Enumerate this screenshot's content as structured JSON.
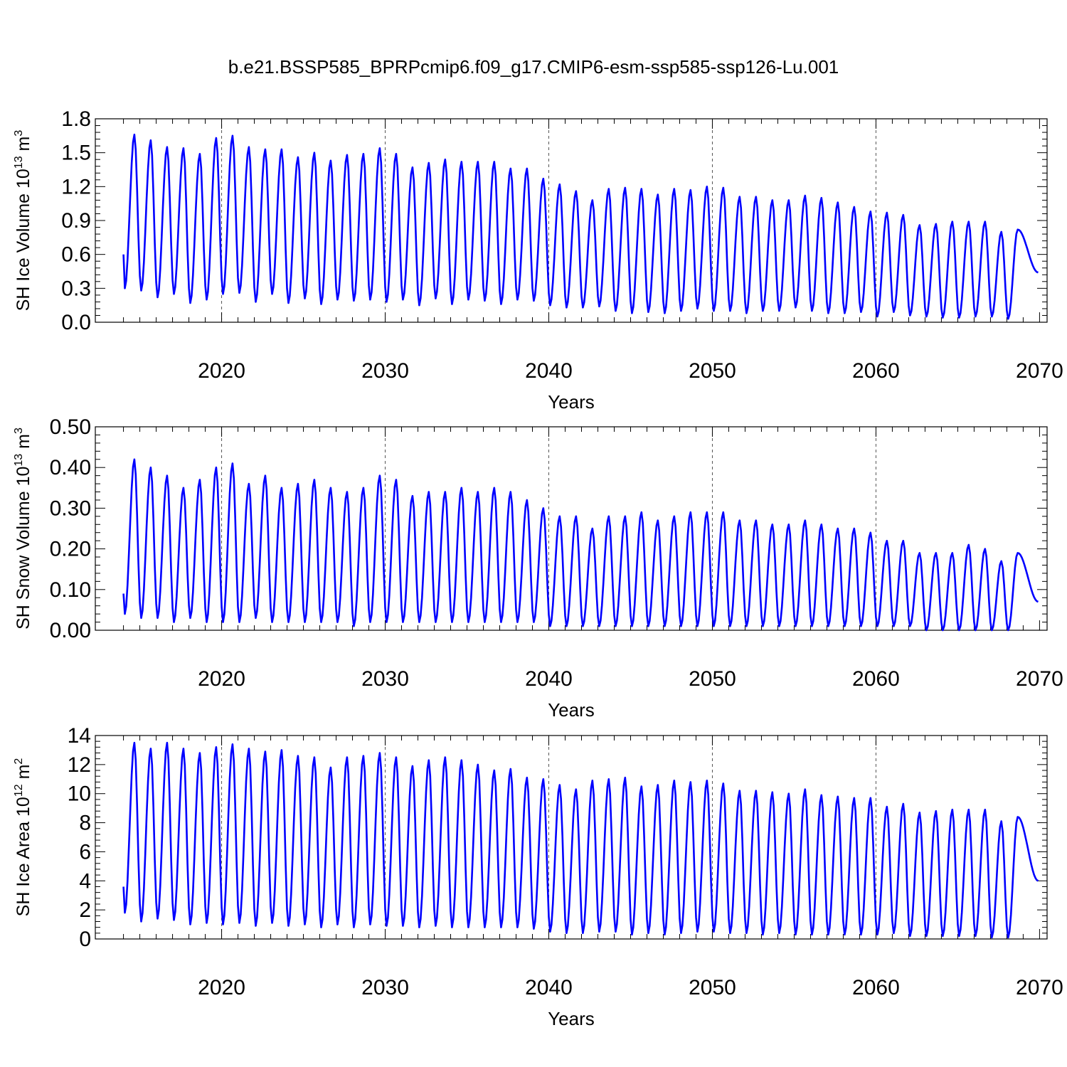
{
  "figure_title": "b.e21.BSSP585_BPRPcmip6.f09_g17.CMIP6-esm-ssp585-ssp126-Lu.001",
  "line_color": "#0000ff",
  "chart_data": [
    {
      "type": "line",
      "ylabel": {
        "base": "SH Ice Volume 10",
        "exp": "13",
        "unit": " m",
        "unit_exp": "3"
      },
      "xlabel": "Years",
      "xlim": [
        2014,
        2070
      ],
      "ylim": [
        0,
        1.8
      ],
      "xticks": [
        2020,
        2030,
        2040,
        2050,
        2060,
        2070
      ],
      "yticks": [
        "0.0",
        "0.3",
        "0.6",
        "0.9",
        "1.2",
        "1.5",
        "1.8"
      ],
      "ytick_values": [
        0,
        0.3,
        0.6,
        0.9,
        1.2,
        1.5,
        1.8
      ],
      "grid": "dashed vertical at decades",
      "series": [
        {
          "name": "SH Ice Volume",
          "peak_month": 9,
          "trough_month": 2,
          "annual_max": [
            1.66,
            1.61,
            1.55,
            1.54,
            1.49,
            1.63,
            1.65,
            1.55,
            1.53,
            1.53,
            1.46,
            1.5,
            1.43,
            1.48,
            1.49,
            1.54,
            1.49,
            1.37,
            1.41,
            1.44,
            1.42,
            1.42,
            1.42,
            1.36,
            1.36,
            1.27,
            1.22,
            1.16,
            1.08,
            1.18,
            1.19,
            1.18,
            1.13,
            1.18,
            1.17,
            1.2,
            1.19,
            1.11,
            1.11,
            1.08,
            1.08,
            1.12,
            1.1,
            1.06,
            1.02,
            0.98,
            0.97,
            0.95,
            0.86,
            0.87,
            0.89,
            0.89,
            0.89,
            0.8,
            0.82
          ],
          "annual_min": [
            0.3,
            0.28,
            0.22,
            0.25,
            0.17,
            0.2,
            0.25,
            0.26,
            0.18,
            0.25,
            0.17,
            0.21,
            0.16,
            0.2,
            0.19,
            0.2,
            0.18,
            0.2,
            0.15,
            0.21,
            0.16,
            0.2,
            0.19,
            0.16,
            0.2,
            0.19,
            0.15,
            0.13,
            0.13,
            0.14,
            0.1,
            0.08,
            0.09,
            0.08,
            0.1,
            0.12,
            0.1,
            0.1,
            0.08,
            0.1,
            0.1,
            0.13,
            0.1,
            0.08,
            0.08,
            0.09,
            0.05,
            0.09,
            0.06,
            0.05,
            0.04,
            0.04,
            0.05,
            0.05,
            0.03
          ],
          "start_value": 0.6,
          "end_value": 0.44
        }
      ]
    },
    {
      "type": "line",
      "ylabel": {
        "base": "SH Snow Volume 10",
        "exp": "13",
        "unit": " m",
        "unit_exp": "3"
      },
      "xlabel": "Years",
      "xlim": [
        2014,
        2070
      ],
      "ylim": [
        0,
        0.5
      ],
      "xticks": [
        2020,
        2030,
        2040,
        2050,
        2060,
        2070
      ],
      "yticks": [
        "0.00",
        "0.10",
        "0.20",
        "0.30",
        "0.40",
        "0.50"
      ],
      "ytick_values": [
        0,
        0.1,
        0.2,
        0.3,
        0.4,
        0.5
      ],
      "grid": "dashed vertical at decades",
      "series": [
        {
          "name": "SH Snow Volume",
          "peak_month": 9,
          "trough_month": 2,
          "annual_max": [
            0.42,
            0.4,
            0.38,
            0.35,
            0.37,
            0.4,
            0.41,
            0.36,
            0.38,
            0.35,
            0.36,
            0.37,
            0.35,
            0.34,
            0.35,
            0.38,
            0.37,
            0.33,
            0.34,
            0.34,
            0.35,
            0.34,
            0.35,
            0.34,
            0.32,
            0.3,
            0.28,
            0.28,
            0.25,
            0.28,
            0.28,
            0.29,
            0.27,
            0.28,
            0.29,
            0.29,
            0.29,
            0.27,
            0.27,
            0.26,
            0.26,
            0.27,
            0.26,
            0.25,
            0.25,
            0.24,
            0.22,
            0.22,
            0.19,
            0.19,
            0.19,
            0.21,
            0.2,
            0.17,
            0.19
          ],
          "annual_min": [
            0.04,
            0.03,
            0.03,
            0.02,
            0.03,
            0.02,
            0.02,
            0.02,
            0.03,
            0.02,
            0.02,
            0.02,
            0.02,
            0.02,
            0.01,
            0.02,
            0.02,
            0.02,
            0.02,
            0.02,
            0.02,
            0.02,
            0.02,
            0.02,
            0.02,
            0.02,
            0.01,
            0.01,
            0.01,
            0.01,
            0.01,
            0.01,
            0.01,
            0.01,
            0.01,
            0.01,
            0.01,
            0.01,
            0.01,
            0.01,
            0.01,
            0.01,
            0.01,
            0.01,
            0.01,
            0.01,
            0.01,
            0.01,
            0.01,
            0.0,
            0.0,
            0.0,
            0.0,
            0.0,
            0.0
          ],
          "start_value": 0.09,
          "end_value": 0.07
        }
      ]
    },
    {
      "type": "line",
      "ylabel": {
        "base": "SH Ice Area 10",
        "exp": "12",
        "unit": " m",
        "unit_exp": "2"
      },
      "xlabel": "Years",
      "xlim": [
        2014,
        2070
      ],
      "ylim": [
        0,
        14
      ],
      "xticks": [
        2020,
        2030,
        2040,
        2050,
        2060,
        2070
      ],
      "yticks": [
        "0",
        "2",
        "4",
        "6",
        "8",
        "10",
        "12",
        "14"
      ],
      "ytick_values": [
        0,
        2,
        4,
        6,
        8,
        10,
        12,
        14
      ],
      "grid": "dashed vertical at decades",
      "series": [
        {
          "name": "SH Ice Area",
          "peak_month": 9,
          "trough_month": 2,
          "annual_max": [
            13.5,
            13.1,
            13.5,
            13.1,
            12.8,
            13.2,
            13.4,
            13.1,
            12.9,
            13.0,
            12.6,
            12.5,
            11.8,
            12.5,
            12.6,
            12.8,
            12.5,
            11.9,
            12.3,
            12.5,
            12.3,
            12.0,
            11.6,
            11.7,
            11.1,
            11.0,
            10.6,
            10.3,
            10.9,
            11.0,
            11.1,
            10.5,
            10.6,
            10.9,
            10.8,
            10.9,
            10.7,
            10.2,
            10.2,
            10.1,
            10.0,
            10.3,
            9.9,
            9.8,
            9.7,
            9.7,
            9.1,
            9.3,
            8.7,
            8.8,
            8.9,
            8.9,
            8.9,
            8.1,
            8.4
          ],
          "annual_min": [
            1.8,
            1.2,
            1.4,
            1.3,
            1.0,
            1.1,
            1.0,
            1.1,
            0.9,
            1.1,
            0.9,
            1.0,
            0.8,
            1.0,
            0.8,
            1.0,
            0.9,
            0.9,
            0.8,
            0.9,
            0.8,
            0.8,
            0.8,
            0.8,
            0.8,
            0.7,
            0.5,
            0.4,
            0.4,
            0.5,
            0.5,
            0.3,
            0.4,
            0.3,
            0.4,
            0.5,
            0.5,
            0.4,
            0.4,
            0.3,
            0.4,
            0.3,
            0.3,
            0.3,
            0.3,
            0.3,
            0.3,
            0.4,
            0.2,
            0.2,
            0.2,
            0.2,
            0.2,
            0.1,
            0.1
          ],
          "start_value": 3.6,
          "end_value": 4.0
        }
      ]
    }
  ]
}
